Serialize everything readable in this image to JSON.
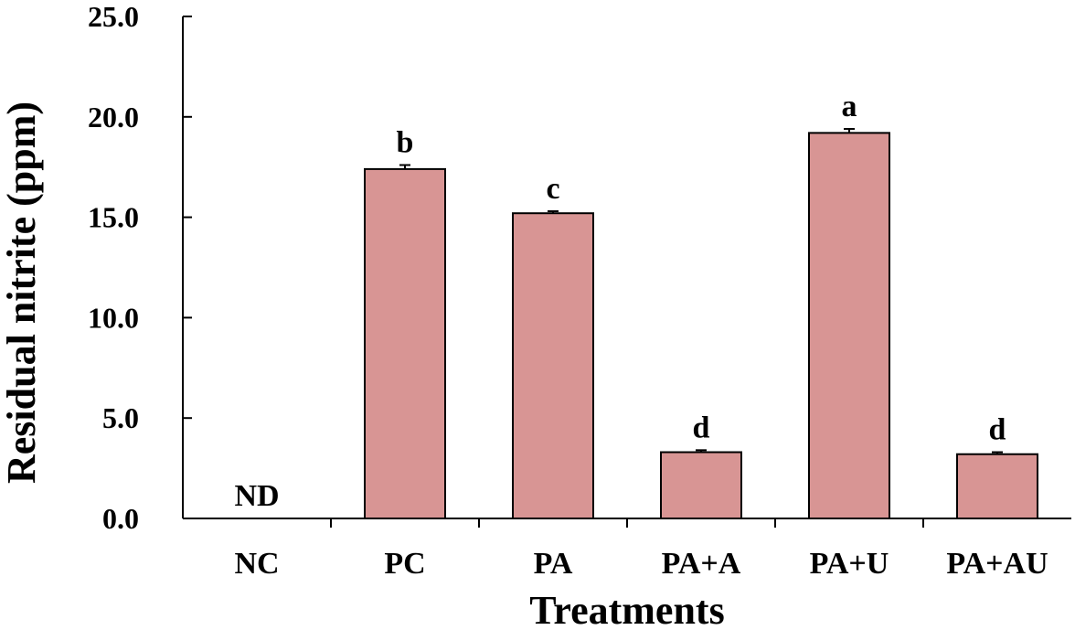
{
  "chart_data": {
    "type": "bar",
    "title": "",
    "xlabel": "Treatments",
    "ylabel": "Residual nitrite (ppm)",
    "ylim": [
      0,
      25
    ],
    "yticks": [
      "0.0",
      "5.0",
      "10.0",
      "15.0",
      "20.0",
      "25.0"
    ],
    "ytick_values": [
      0,
      5,
      10,
      15,
      20,
      25
    ],
    "categories": [
      "NC",
      "PC",
      "PA",
      "PA+A",
      "PA+U",
      "PA+AU"
    ],
    "values": [
      0,
      17.4,
      15.2,
      3.3,
      19.2,
      3.2
    ],
    "errors": [
      0,
      0.2,
      0.1,
      0.1,
      0.2,
      0.1
    ],
    "annotations": [
      "ND",
      "b",
      "c",
      "d",
      "a",
      "d"
    ],
    "bar_color": "#d89594",
    "grid": false,
    "legend": "none"
  }
}
